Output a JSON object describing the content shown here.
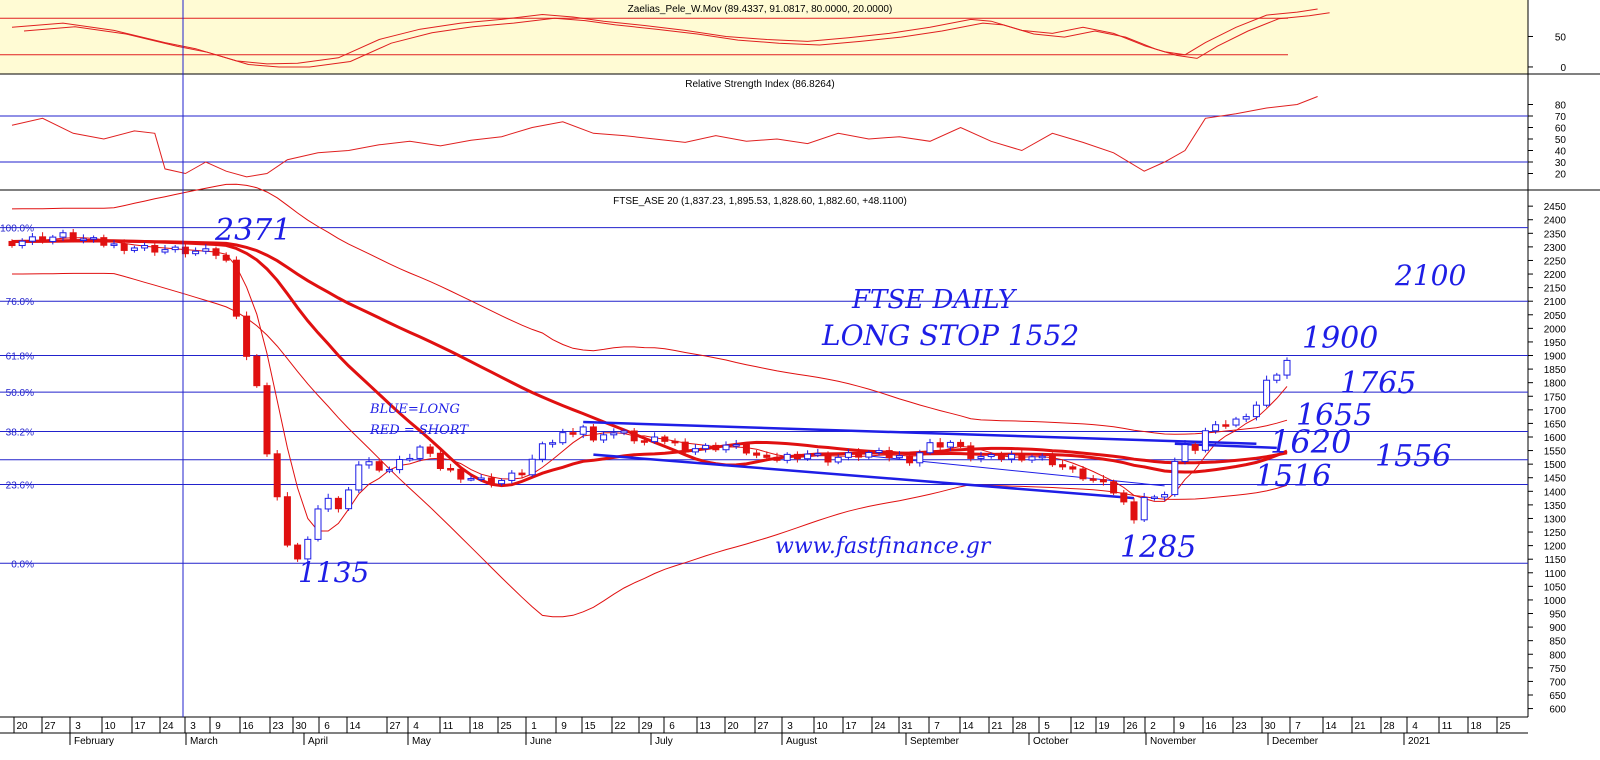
{
  "panels": {
    "oscillator": {
      "title": "Zaelias_Pele_W.Mov (89.4337, 91.0817, 80.0000, 20.0000)",
      "range": [
        -5,
        100
      ],
      "ticks": [
        "50",
        "0"
      ],
      "tick_values": [
        50,
        0
      ],
      "levels": [
        80,
        20
      ],
      "background": "#fffbd4",
      "line_color": "#e02020"
    },
    "rsi": {
      "title": "Relative Strength Index (86.8264)",
      "range": [
        10,
        90
      ],
      "ticks": [
        "80",
        "70",
        "60",
        "50",
        "40",
        "30",
        "20"
      ],
      "tick_values": [
        80,
        70,
        60,
        50,
        40,
        30,
        20
      ],
      "levels": [
        70,
        30
      ],
      "line_color": "#e02020",
      "level_color": "#2222cc"
    },
    "price": {
      "title": "FTSE_ASE 20 (1,837.23, 1,895.53, 1,828.60, 1,882.60, +48.1100)",
      "range": [
        580,
        2480
      ],
      "ticks": [
        "2450",
        "2400",
        "2350",
        "2300",
        "2250",
        "2200",
        "2150",
        "2100",
        "2050",
        "2000",
        "1950",
        "1900",
        "1850",
        "1800",
        "1750",
        "1700",
        "1650",
        "1600",
        "1550",
        "1500",
        "1450",
        "1400",
        "1350",
        "1300",
        "1250",
        "1200",
        "1150",
        "1100",
        "1050",
        "1000",
        "950",
        "900",
        "850",
        "800",
        "750",
        "700",
        "650",
        "600"
      ],
      "tick_values": [
        2450,
        2400,
        2350,
        2300,
        2250,
        2200,
        2150,
        2100,
        2050,
        2000,
        1950,
        1900,
        1850,
        1800,
        1750,
        1700,
        1650,
        1600,
        1550,
        1500,
        1450,
        1400,
        1350,
        1300,
        1250,
        1200,
        1150,
        1100,
        1050,
        1000,
        950,
        900,
        850,
        800,
        750,
        700,
        650,
        600
      ]
    }
  },
  "chart_data": {
    "type": "candlestick",
    "title": "FTSE_ASE 20",
    "ohlc_last": {
      "open": 1837.23,
      "high": 1895.53,
      "low": 1828.6,
      "close": 1882.6,
      "change": 48.11
    },
    "date_axis": {
      "day_labels": [
        "20",
        "27",
        "3",
        "10",
        "17",
        "24",
        "3",
        "9",
        "16",
        "23",
        "30",
        "6",
        "14",
        "27",
        "4",
        "11",
        "18",
        "25",
        "1",
        "9",
        "15",
        "22",
        "29",
        "6",
        "13",
        "20",
        "27",
        "3",
        "10",
        "17",
        "24",
        "31",
        "7",
        "14",
        "21",
        "28",
        "5",
        "12",
        "19",
        "26",
        "2",
        "9",
        "16",
        "23",
        "30",
        "7",
        "14",
        "21",
        "28",
        "4",
        "11",
        "18",
        "25"
      ],
      "months": [
        "February",
        "March",
        "April",
        "May",
        "June",
        "July",
        "August",
        "September",
        "October",
        "November",
        "December",
        "2021"
      ]
    },
    "fib_levels": [
      {
        "label": "100.0%",
        "value": 2371
      },
      {
        "label": "76.0%",
        "value": 2100
      },
      {
        "label": "61.8%",
        "value": 1900
      },
      {
        "label": "50.0%",
        "value": 1765
      },
      {
        "label": "38.2%",
        "value": 1620
      },
      {
        "label": "23.6%",
        "value": 1425
      },
      {
        "label": "0.0%",
        "value": 1135
      }
    ],
    "horizontal_lines": [
      2371,
      2100,
      1900,
      1765,
      1620,
      1516,
      1425,
      1135
    ],
    "annotations": [
      {
        "text": "2371",
        "value": 2371
      },
      {
        "text": "1135",
        "value": 1135
      },
      {
        "text": "2100",
        "value": 2100
      },
      {
        "text": "1900",
        "value": 1900
      },
      {
        "text": "1765",
        "value": 1765
      },
      {
        "text": "1655",
        "value": 1655
      },
      {
        "text": "1620",
        "value": 1620
      },
      {
        "text": "1556",
        "value": 1556
      },
      {
        "text": "1516",
        "value": 1516
      },
      {
        "text": "1285",
        "value": 1285
      }
    ],
    "notes": [
      "FTSE DAILY",
      "LONG STOP 1552",
      "BLUE=LONG",
      "RED = SHORT",
      "www.fastfinance.gr"
    ],
    "bar_colors": {
      "up": "#1e1ee6",
      "down": "#e01010"
    },
    "price_path": [
      [
        0,
        2320
      ],
      [
        5,
        2340
      ],
      [
        10,
        2305
      ],
      [
        15,
        2290
      ],
      [
        20,
        2275
      ],
      [
        21,
        2245
      ],
      [
        22,
        2060
      ],
      [
        23,
        1900
      ],
      [
        24,
        1780
      ],
      [
        25,
        1550
      ],
      [
        26,
        1380
      ],
      [
        27,
        1190
      ],
      [
        28,
        1160
      ],
      [
        29,
        1220
      ],
      [
        30,
        1320
      ],
      [
        31,
        1380
      ],
      [
        32,
        1330
      ],
      [
        33,
        1420
      ],
      [
        34,
        1500
      ],
      [
        35,
        1500
      ],
      [
        37,
        1480
      ],
      [
        39,
        1530
      ],
      [
        40,
        1560
      ],
      [
        42,
        1490
      ],
      [
        44,
        1460
      ],
      [
        46,
        1440
      ],
      [
        48,
        1440
      ],
      [
        50,
        1470
      ],
      [
        52,
        1560
      ],
      [
        54,
        1610
      ],
      [
        56,
        1640
      ],
      [
        57,
        1580
      ],
      [
        58,
        1620
      ],
      [
        60,
        1610
      ],
      [
        62,
        1580
      ],
      [
        64,
        1590
      ],
      [
        66,
        1560
      ],
      [
        68,
        1560
      ],
      [
        70,
        1570
      ],
      [
        72,
        1550
      ],
      [
        74,
        1510
      ],
      [
        76,
        1530
      ],
      [
        78,
        1540
      ],
      [
        80,
        1520
      ],
      [
        82,
        1530
      ],
      [
        84,
        1540
      ],
      [
        86,
        1530
      ],
      [
        88,
        1520
      ],
      [
        90,
        1570
      ],
      [
        92,
        1580
      ],
      [
        94,
        1530
      ],
      [
        96,
        1520
      ],
      [
        98,
        1530
      ],
      [
        100,
        1530
      ],
      [
        102,
        1510
      ],
      [
        104,
        1470
      ],
      [
        106,
        1440
      ],
      [
        108,
        1400
      ],
      [
        110,
        1310
      ],
      [
        111,
        1380
      ],
      [
        112,
        1370
      ],
      [
        113,
        1400
      ],
      [
        114,
        1510
      ],
      [
        115,
        1560
      ],
      [
        116,
        1560
      ],
      [
        117,
        1620
      ],
      [
        118,
        1630
      ],
      [
        119,
        1650
      ],
      [
        120,
        1660
      ],
      [
        121,
        1690
      ],
      [
        122,
        1720
      ],
      [
        123,
        1800
      ],
      [
        124,
        1840
      ],
      [
        125,
        1882
      ]
    ],
    "osc_path": [
      [
        0,
        65
      ],
      [
        5,
        72
      ],
      [
        10,
        60
      ],
      [
        15,
        40
      ],
      [
        18,
        30
      ],
      [
        20,
        20
      ],
      [
        22,
        10
      ],
      [
        25,
        5
      ],
      [
        28,
        6
      ],
      [
        32,
        15
      ],
      [
        36,
        45
      ],
      [
        40,
        62
      ],
      [
        44,
        72
      ],
      [
        48,
        78
      ],
      [
        52,
        86
      ],
      [
        55,
        82
      ],
      [
        58,
        75
      ],
      [
        62,
        68
      ],
      [
        66,
        60
      ],
      [
        70,
        50
      ],
      [
        74,
        45
      ],
      [
        78,
        42
      ],
      [
        82,
        48
      ],
      [
        86,
        55
      ],
      [
        90,
        65
      ],
      [
        94,
        78
      ],
      [
        96,
        75
      ],
      [
        99,
        60
      ],
      [
        102,
        55
      ],
      [
        105,
        65
      ],
      [
        108,
        55
      ],
      [
        111,
        35
      ],
      [
        113,
        25
      ],
      [
        115,
        20
      ],
      [
        117,
        40
      ],
      [
        120,
        65
      ],
      [
        123,
        85
      ],
      [
        126,
        90
      ],
      [
        128,
        95
      ]
    ],
    "rsi_path": [
      [
        0,
        62
      ],
      [
        3,
        68
      ],
      [
        6,
        55
      ],
      [
        9,
        50
      ],
      [
        12,
        57
      ],
      [
        14,
        55
      ],
      [
        15,
        24
      ],
      [
        17,
        20
      ],
      [
        19,
        30
      ],
      [
        21,
        22
      ],
      [
        23,
        17
      ],
      [
        25,
        20
      ],
      [
        27,
        32
      ],
      [
        30,
        38
      ],
      [
        33,
        40
      ],
      [
        36,
        45
      ],
      [
        39,
        48
      ],
      [
        42,
        44
      ],
      [
        45,
        49
      ],
      [
        48,
        52
      ],
      [
        51,
        60
      ],
      [
        54,
        65
      ],
      [
        57,
        55
      ],
      [
        60,
        53
      ],
      [
        63,
        50
      ],
      [
        66,
        47
      ],
      [
        69,
        53
      ],
      [
        72,
        48
      ],
      [
        75,
        50
      ],
      [
        78,
        46
      ],
      [
        81,
        55
      ],
      [
        84,
        50
      ],
      [
        87,
        52
      ],
      [
        90,
        48
      ],
      [
        93,
        60
      ],
      [
        96,
        48
      ],
      [
        99,
        40
      ],
      [
        102,
        55
      ],
      [
        105,
        47
      ],
      [
        108,
        38
      ],
      [
        111,
        22
      ],
      [
        113,
        30
      ],
      [
        115,
        40
      ],
      [
        117,
        68
      ],
      [
        120,
        72
      ],
      [
        123,
        77
      ],
      [
        126,
        80
      ],
      [
        128,
        87
      ]
    ]
  }
}
